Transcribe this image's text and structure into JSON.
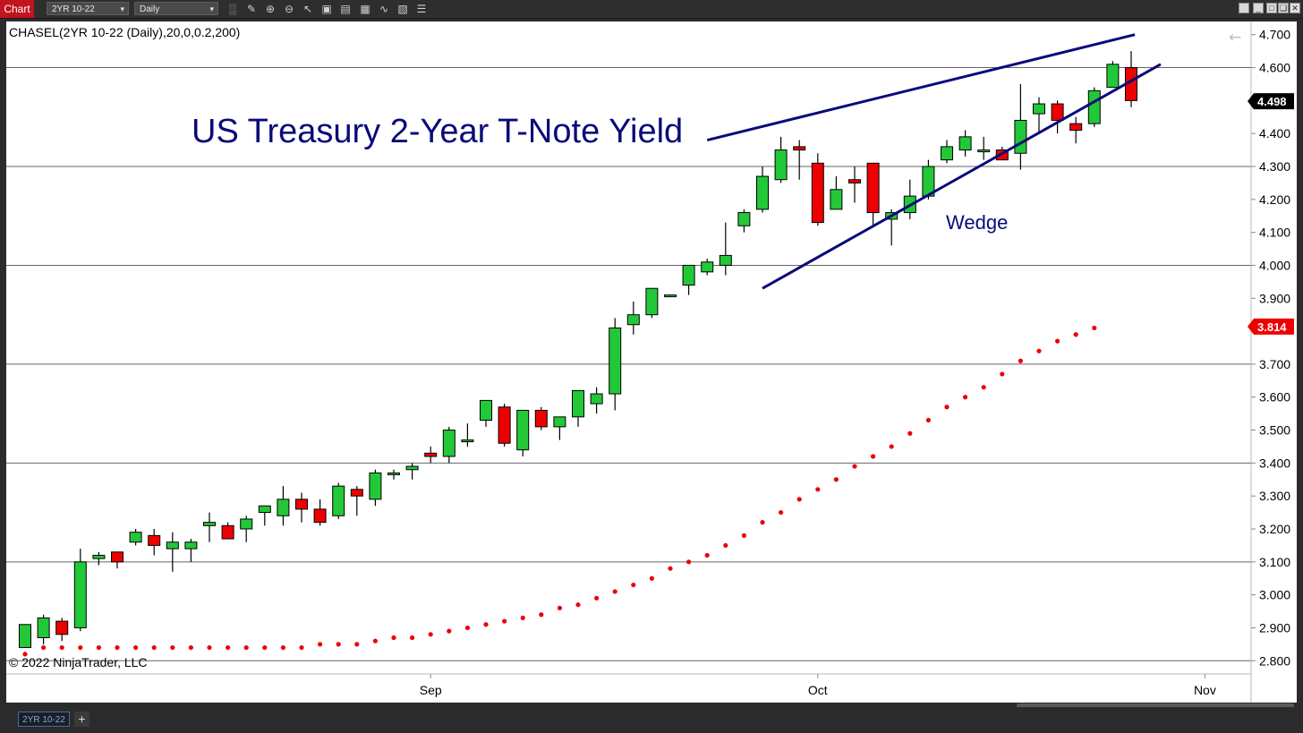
{
  "toolbar": {
    "tab_label": "Chart",
    "instrument_value": "2YR 10-22",
    "interval_value": "Daily",
    "icons": [
      "bars-type-icon",
      "draw-icon",
      "zoom-in-icon",
      "zoom-out-icon",
      "pointer-icon",
      "data-box-icon",
      "properties-icon",
      "templates-icon",
      "indicators-icon",
      "strategies-icon",
      "more-icon"
    ],
    "window_buttons": [
      "restore-icon",
      "minimize-icon",
      "maximize-icon",
      "close-icon"
    ]
  },
  "bottom": {
    "tab_label": "2YR 10-22",
    "add_label": "+"
  },
  "chart_data": {
    "type": "candlestick",
    "indicator_label": "CHASEL(2YR 10-22 (Daily),20,0,0.2,200)",
    "title": "US Treasury 2-Year T-Note Yield",
    "annotation": "Wedge",
    "copyright": "© 2022 NinjaTrader, LLC",
    "ylim": [
      2.76,
      4.74
    ],
    "yticks": [
      "4.700",
      "4.600",
      "4.400",
      "4.300",
      "4.200",
      "4.100",
      "4.000",
      "3.900",
      "3.700",
      "3.600",
      "3.500",
      "3.400",
      "3.300",
      "3.200",
      "3.100",
      "3.000",
      "2.900",
      "2.800"
    ],
    "gridlines": [
      2.8,
      3.1,
      3.4,
      3.7,
      4.0,
      4.3,
      4.6
    ],
    "x_labels": [
      {
        "label": "Sep",
        "index": 22
      },
      {
        "label": "Oct",
        "index": 43
      },
      {
        "label": "Nov",
        "index": 64
      }
    ],
    "last_price": {
      "value": "4.498",
      "y": 4.498
    },
    "sar_value": {
      "value": "3.814",
      "y": 3.814
    },
    "colors": {
      "up": "#22c838",
      "down": "#ee0000",
      "sar": "#ee0000",
      "lines": "#0a0a7a"
    },
    "candles": [
      {
        "o": 2.84,
        "h": 2.91,
        "l": 2.84,
        "c": 2.91
      },
      {
        "o": 2.87,
        "h": 2.94,
        "l": 2.85,
        "c": 2.93
      },
      {
        "o": 2.92,
        "h": 2.93,
        "l": 2.86,
        "c": 2.88
      },
      {
        "o": 2.9,
        "h": 3.14,
        "l": 2.89,
        "c": 3.1
      },
      {
        "o": 3.11,
        "h": 3.13,
        "l": 3.09,
        "c": 3.12
      },
      {
        "o": 3.13,
        "h": 3.13,
        "l": 3.08,
        "c": 3.1
      },
      {
        "o": 3.16,
        "h": 3.2,
        "l": 3.15,
        "c": 3.19
      },
      {
        "o": 3.18,
        "h": 3.2,
        "l": 3.12,
        "c": 3.15
      },
      {
        "o": 3.14,
        "h": 3.19,
        "l": 3.07,
        "c": 3.16
      },
      {
        "o": 3.14,
        "h": 3.17,
        "l": 3.1,
        "c": 3.16
      },
      {
        "o": 3.21,
        "h": 3.25,
        "l": 3.16,
        "c": 3.22
      },
      {
        "o": 3.21,
        "h": 3.22,
        "l": 3.18,
        "c": 3.17
      },
      {
        "o": 3.2,
        "h": 3.24,
        "l": 3.16,
        "c": 3.23
      },
      {
        "o": 3.25,
        "h": 3.27,
        "l": 3.21,
        "c": 3.27
      },
      {
        "o": 3.24,
        "h": 3.33,
        "l": 3.21,
        "c": 3.29
      },
      {
        "o": 3.29,
        "h": 3.31,
        "l": 3.22,
        "c": 3.26
      },
      {
        "o": 3.26,
        "h": 3.29,
        "l": 3.21,
        "c": 3.22
      },
      {
        "o": 3.24,
        "h": 3.34,
        "l": 3.23,
        "c": 3.33
      },
      {
        "o": 3.32,
        "h": 3.33,
        "l": 3.24,
        "c": 3.3
      },
      {
        "o": 3.29,
        "h": 3.38,
        "l": 3.27,
        "c": 3.37
      },
      {
        "o": 3.37,
        "h": 3.38,
        "l": 3.35,
        "c": 3.37
      },
      {
        "o": 3.38,
        "h": 3.4,
        "l": 3.35,
        "c": 3.39
      },
      {
        "o": 3.43,
        "h": 3.45,
        "l": 3.4,
        "c": 3.42
      },
      {
        "o": 3.42,
        "h": 3.51,
        "l": 3.4,
        "c": 3.5
      },
      {
        "o": 3.47,
        "h": 3.52,
        "l": 3.45,
        "c": 3.47
      },
      {
        "o": 3.53,
        "h": 3.58,
        "l": 3.51,
        "c": 3.59
      },
      {
        "o": 3.57,
        "h": 3.58,
        "l": 3.45,
        "c": 3.46
      },
      {
        "o": 3.44,
        "h": 3.56,
        "l": 3.42,
        "c": 3.56
      },
      {
        "o": 3.56,
        "h": 3.57,
        "l": 3.5,
        "c": 3.51
      },
      {
        "o": 3.51,
        "h": 3.54,
        "l": 3.47,
        "c": 3.54
      },
      {
        "o": 3.54,
        "h": 3.62,
        "l": 3.51,
        "c": 3.62
      },
      {
        "o": 3.58,
        "h": 3.63,
        "l": 3.55,
        "c": 3.61
      },
      {
        "o": 3.61,
        "h": 3.84,
        "l": 3.56,
        "c": 3.81
      },
      {
        "o": 3.82,
        "h": 3.89,
        "l": 3.79,
        "c": 3.85
      },
      {
        "o": 3.85,
        "h": 3.93,
        "l": 3.84,
        "c": 3.93
      },
      {
        "o": 3.91,
        "h": 3.91,
        "l": 3.91,
        "c": 3.91
      },
      {
        "o": 3.94,
        "h": 4.0,
        "l": 3.91,
        "c": 4.0
      },
      {
        "o": 3.98,
        "h": 4.02,
        "l": 3.97,
        "c": 4.01
      },
      {
        "o": 4.0,
        "h": 4.13,
        "l": 3.97,
        "c": 4.03
      },
      {
        "o": 4.12,
        "h": 4.17,
        "l": 4.1,
        "c": 4.16
      },
      {
        "o": 4.17,
        "h": 4.3,
        "l": 4.16,
        "c": 4.27
      },
      {
        "o": 4.26,
        "h": 4.39,
        "l": 4.25,
        "c": 4.35
      },
      {
        "o": 4.36,
        "h": 4.38,
        "l": 4.26,
        "c": 4.35
      },
      {
        "o": 4.31,
        "h": 4.34,
        "l": 4.12,
        "c": 4.13
      },
      {
        "o": 4.17,
        "h": 4.27,
        "l": 4.17,
        "c": 4.23
      },
      {
        "o": 4.26,
        "h": 4.3,
        "l": 4.19,
        "c": 4.25
      },
      {
        "o": 4.31,
        "h": 4.31,
        "l": 4.12,
        "c": 4.16
      },
      {
        "o": 4.14,
        "h": 4.17,
        "l": 4.06,
        "c": 4.16
      },
      {
        "o": 4.16,
        "h": 4.26,
        "l": 4.14,
        "c": 4.21
      },
      {
        "o": 4.21,
        "h": 4.32,
        "l": 4.2,
        "c": 4.3
      },
      {
        "o": 4.32,
        "h": 4.38,
        "l": 4.31,
        "c": 4.36
      },
      {
        "o": 4.35,
        "h": 4.41,
        "l": 4.33,
        "c": 4.39
      },
      {
        "o": 4.35,
        "h": 4.39,
        "l": 4.32,
        "c": 4.35
      },
      {
        "o": 4.35,
        "h": 4.36,
        "l": 4.32,
        "c": 4.32
      },
      {
        "o": 4.34,
        "h": 4.55,
        "l": 4.29,
        "c": 4.44
      },
      {
        "o": 4.46,
        "h": 4.51,
        "l": 4.4,
        "c": 4.49
      },
      {
        "o": 4.49,
        "h": 4.5,
        "l": 4.4,
        "c": 4.44
      },
      {
        "o": 4.43,
        "h": 4.45,
        "l": 4.37,
        "c": 4.41
      },
      {
        "o": 4.43,
        "h": 4.54,
        "l": 4.42,
        "c": 4.53
      },
      {
        "o": 4.54,
        "h": 4.62,
        "l": 4.54,
        "c": 4.61
      },
      {
        "o": 4.6,
        "h": 4.65,
        "l": 4.48,
        "c": 4.5
      }
    ],
    "sar": [
      [
        0,
        2.82
      ],
      [
        1,
        2.84
      ],
      [
        2,
        2.84
      ],
      [
        3,
        2.84
      ],
      [
        4,
        2.84
      ],
      [
        5,
        2.84
      ],
      [
        6,
        2.84
      ],
      [
        7,
        2.84
      ],
      [
        8,
        2.84
      ],
      [
        9,
        2.84
      ],
      [
        10,
        2.84
      ],
      [
        11,
        2.84
      ],
      [
        12,
        2.84
      ],
      [
        13,
        2.84
      ],
      [
        14,
        2.84
      ],
      [
        15,
        2.84
      ],
      [
        16,
        2.85
      ],
      [
        17,
        2.85
      ],
      [
        18,
        2.85
      ],
      [
        19,
        2.86
      ],
      [
        20,
        2.87
      ],
      [
        21,
        2.87
      ],
      [
        22,
        2.88
      ],
      [
        23,
        2.89
      ],
      [
        24,
        2.9
      ],
      [
        25,
        2.91
      ],
      [
        26,
        2.92
      ],
      [
        27,
        2.93
      ],
      [
        28,
        2.94
      ],
      [
        29,
        2.96
      ],
      [
        30,
        2.97
      ],
      [
        31,
        2.99
      ],
      [
        32,
        3.01
      ],
      [
        33,
        3.03
      ],
      [
        34,
        3.05
      ],
      [
        35,
        3.08
      ],
      [
        36,
        3.1
      ],
      [
        37,
        3.12
      ],
      [
        38,
        3.15
      ],
      [
        39,
        3.18
      ],
      [
        40,
        3.22
      ],
      [
        41,
        3.25
      ],
      [
        42,
        3.29
      ],
      [
        43,
        3.32
      ],
      [
        44,
        3.35
      ],
      [
        45,
        3.39
      ],
      [
        46,
        3.42
      ],
      [
        47,
        3.45
      ],
      [
        48,
        3.49
      ],
      [
        49,
        3.53
      ],
      [
        50,
        3.57
      ],
      [
        51,
        3.6
      ],
      [
        52,
        3.63
      ],
      [
        53,
        3.67
      ],
      [
        54,
        3.71
      ],
      [
        55,
        3.74
      ],
      [
        56,
        3.77
      ],
      [
        57,
        3.79
      ],
      [
        58,
        3.81
      ]
    ],
    "trendlines": [
      {
        "from": [
          37,
          4.38
        ],
        "to": [
          60.2,
          4.7
        ]
      },
      {
        "from": [
          40,
          3.93
        ],
        "to": [
          61.6,
          4.61
        ]
      }
    ]
  }
}
